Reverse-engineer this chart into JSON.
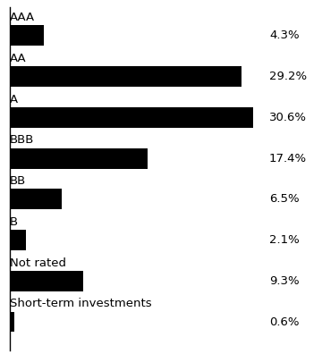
{
  "categories": [
    "AAA",
    "AA",
    "A",
    "BBB",
    "BB",
    "B",
    "Not rated",
    "Short-term investments"
  ],
  "values": [
    4.3,
    29.2,
    30.6,
    17.4,
    6.5,
    2.1,
    9.3,
    0.6
  ],
  "labels": [
    "4.3%",
    "29.2%",
    "30.6%",
    "17.4%",
    "6.5%",
    "2.1%",
    "9.3%",
    "0.6%"
  ],
  "bar_color": "#000000",
  "background_color": "#ffffff",
  "text_color": "#000000",
  "bar_height": 0.5,
  "xlim": [
    0,
    32
  ],
  "label_fontsize": 9.5,
  "category_fontsize": 9.5,
  "value_fontsize": 9.5,
  "fig_width": 3.6,
  "fig_height": 3.96,
  "dpi": 100
}
